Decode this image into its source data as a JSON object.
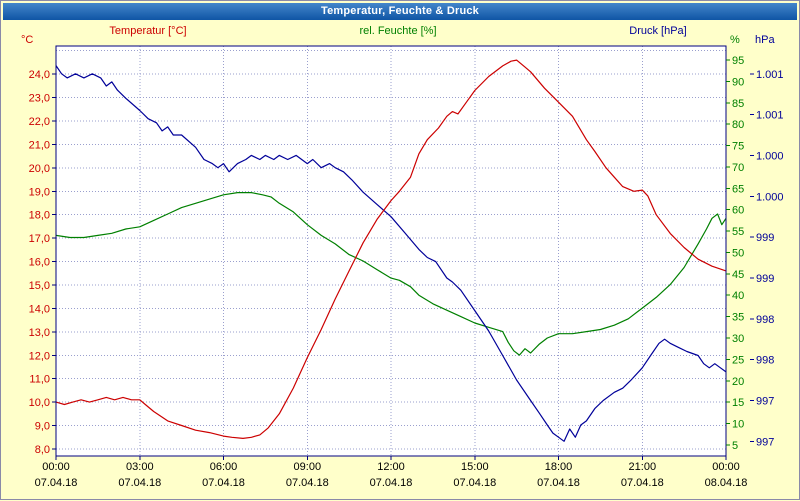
{
  "window": {
    "title": "Temperatur, Feuchte & Druck"
  },
  "header": {
    "temp_label": "Temperatur [°C]",
    "hum_label": "rel. Feuchte [%]",
    "press_label": "Druck [hPa]",
    "temp_unit": "°C",
    "hum_unit": "%",
    "press_unit": "hPa"
  },
  "colors": {
    "temp": "#cc0000",
    "hum": "#008000",
    "press": "#000099",
    "grid": "#9a9fce",
    "border": "#000080",
    "plot_bg": "#ffffff",
    "window_bg": "#ffffca",
    "titlebar": "#0f55a5",
    "time_text": "#000000"
  },
  "chart_data": {
    "type": "line",
    "title": "Temperatur, Feuchte & Druck",
    "grid": "dotted",
    "legend_position": "top",
    "x_axis": {
      "min": 0,
      "max": 24,
      "ticks": [
        {
          "h": 0,
          "time": "00:00",
          "date": "07.04.18"
        },
        {
          "h": 3,
          "time": "03:00",
          "date": "07.04.18"
        },
        {
          "h": 6,
          "time": "06:00",
          "date": "07.04.18"
        },
        {
          "h": 9,
          "time": "09:00",
          "date": "07.04.18"
        },
        {
          "h": 12,
          "time": "12:00",
          "date": "07.04.18"
        },
        {
          "h": 15,
          "time": "15:00",
          "date": "07.04.18"
        },
        {
          "h": 18,
          "time": "18:00",
          "date": "07.04.18"
        },
        {
          "h": 21,
          "time": "21:00",
          "date": "07.04.18"
        },
        {
          "h": 24,
          "time": "00:00",
          "date": "08.04.18"
        }
      ]
    },
    "y_axes": {
      "temperature": {
        "label": "Temperatur [°C]",
        "unit": "°C",
        "color": "#cc0000",
        "range": [
          7.7,
          25.2
        ],
        "grid_extra": [
          25
        ],
        "ticks": [
          {
            "v": 8,
            "label": "8,0"
          },
          {
            "v": 9,
            "label": "9,0"
          },
          {
            "v": 10,
            "label": "10,0"
          },
          {
            "v": 11,
            "label": "11,0"
          },
          {
            "v": 12,
            "label": "12,0"
          },
          {
            "v": 13,
            "label": "13,0"
          },
          {
            "v": 14,
            "label": "14,0"
          },
          {
            "v": 15,
            "label": "15,0"
          },
          {
            "v": 16,
            "label": "16,0"
          },
          {
            "v": 17,
            "label": "17,0"
          },
          {
            "v": 18,
            "label": "18,0"
          },
          {
            "v": 19,
            "label": "19,0"
          },
          {
            "v": 20,
            "label": "20,0"
          },
          {
            "v": 21,
            "label": "21,0"
          },
          {
            "v": 22,
            "label": "22,0"
          },
          {
            "v": 23,
            "label": "23,0"
          },
          {
            "v": 24,
            "label": "24,0"
          }
        ]
      },
      "humidity": {
        "label": "rel. Feuchte [%]",
        "unit": "%",
        "color": "#008000",
        "range": [
          2.4,
          98.3
        ],
        "ticks": [
          {
            "v": 5,
            "label": "5"
          },
          {
            "v": 10,
            "label": "10"
          },
          {
            "v": 15,
            "label": "15"
          },
          {
            "v": 20,
            "label": "20"
          },
          {
            "v": 25,
            "label": "25"
          },
          {
            "v": 30,
            "label": "30"
          },
          {
            "v": 35,
            "label": "35"
          },
          {
            "v": 40,
            "label": "40"
          },
          {
            "v": 45,
            "label": "45"
          },
          {
            "v": 50,
            "label": "50"
          },
          {
            "v": 55,
            "label": "55"
          },
          {
            "v": 60,
            "label": "60"
          },
          {
            "v": 65,
            "label": "65"
          },
          {
            "v": 70,
            "label": "70"
          },
          {
            "v": 75,
            "label": "75"
          },
          {
            "v": 80,
            "label": "80"
          },
          {
            "v": 85,
            "label": "85"
          },
          {
            "v": 90,
            "label": "90"
          },
          {
            "v": 95,
            "label": "95"
          }
        ]
      },
      "pressure": {
        "label": "Druck [hPa]",
        "unit": "hPa",
        "color": "#000099",
        "range": [
          996.32,
          1001.34
        ],
        "ticks": [
          {
            "v": 996.5,
            "label": "997"
          },
          {
            "v": 997,
            "label": "997"
          },
          {
            "v": 997.5,
            "label": "998"
          },
          {
            "v": 998,
            "label": "998"
          },
          {
            "v": 998.5,
            "label": "999"
          },
          {
            "v": 999,
            "label": "999"
          },
          {
            "v": 999.5,
            "label": "1.000"
          },
          {
            "v": 1000,
            "label": "1.000"
          },
          {
            "v": 1000.5,
            "label": "1.001"
          },
          {
            "v": 1001,
            "label": "1.001"
          }
        ]
      }
    },
    "series": [
      {
        "id": "humidity",
        "name": "rel. Feuchte",
        "axis": "humidity",
        "color": "#008000",
        "points": [
          [
            0,
            54
          ],
          [
            0.5,
            53.5
          ],
          [
            1,
            53.5
          ],
          [
            1.5,
            54
          ],
          [
            2,
            54.5
          ],
          [
            2.5,
            55.5
          ],
          [
            3,
            56
          ],
          [
            3.5,
            57.5
          ],
          [
            4,
            59
          ],
          [
            4.5,
            60.5
          ],
          [
            5,
            61.5
          ],
          [
            5.5,
            62.5
          ],
          [
            6,
            63.5
          ],
          [
            6.5,
            64
          ],
          [
            7,
            64
          ],
          [
            7.4,
            63.5
          ],
          [
            7.7,
            63
          ],
          [
            8,
            61.5
          ],
          [
            8.5,
            59.5
          ],
          [
            9,
            56.5
          ],
          [
            9.5,
            54
          ],
          [
            10,
            52
          ],
          [
            10.5,
            49.5
          ],
          [
            11,
            48
          ],
          [
            11.5,
            46
          ],
          [
            12,
            44
          ],
          [
            12.3,
            43.5
          ],
          [
            12.7,
            42
          ],
          [
            13,
            40
          ],
          [
            13.5,
            38
          ],
          [
            14,
            36.5
          ],
          [
            14.5,
            35
          ],
          [
            15,
            33.5
          ],
          [
            15.5,
            32.5
          ],
          [
            16,
            31.5
          ],
          [
            16.2,
            29
          ],
          [
            16.4,
            27
          ],
          [
            16.6,
            26
          ],
          [
            16.8,
            27.5
          ],
          [
            17,
            26.5
          ],
          [
            17.3,
            28.5
          ],
          [
            17.6,
            30
          ],
          [
            18,
            31
          ],
          [
            18.5,
            31
          ],
          [
            19,
            31.5
          ],
          [
            19.5,
            32
          ],
          [
            20,
            33
          ],
          [
            20.5,
            34.5
          ],
          [
            21,
            37
          ],
          [
            21.5,
            39.5
          ],
          [
            22,
            42.5
          ],
          [
            22.5,
            46.5
          ],
          [
            23,
            52
          ],
          [
            23.3,
            55.5
          ],
          [
            23.5,
            58
          ],
          [
            23.7,
            59
          ],
          [
            23.85,
            56.5
          ],
          [
            24,
            58
          ]
        ]
      },
      {
        "id": "pressure",
        "name": "Druck",
        "axis": "pressure",
        "color": "#000099",
        "points": [
          [
            0,
            1001.1
          ],
          [
            0.2,
            1001.0
          ],
          [
            0.4,
            1000.95
          ],
          [
            0.7,
            1001.0
          ],
          [
            1,
            1000.95
          ],
          [
            1.3,
            1001.0
          ],
          [
            1.6,
            1000.95
          ],
          [
            1.8,
            1000.85
          ],
          [
            2,
            1000.9
          ],
          [
            2.2,
            1000.8
          ],
          [
            2.5,
            1000.7
          ],
          [
            3,
            1000.55
          ],
          [
            3.3,
            1000.45
          ],
          [
            3.6,
            1000.4
          ],
          [
            3.8,
            1000.3
          ],
          [
            4,
            1000.35
          ],
          [
            4.2,
            1000.25
          ],
          [
            4.5,
            1000.25
          ],
          [
            5,
            1000.1
          ],
          [
            5.3,
            999.95
          ],
          [
            5.6,
            999.9
          ],
          [
            5.8,
            999.85
          ],
          [
            6,
            999.9
          ],
          [
            6.2,
            999.8
          ],
          [
            6.5,
            999.9
          ],
          [
            6.8,
            999.95
          ],
          [
            7,
            1000.0
          ],
          [
            7.3,
            999.95
          ],
          [
            7.5,
            1000.0
          ],
          [
            7.8,
            999.95
          ],
          [
            8,
            1000.0
          ],
          [
            8.3,
            999.95
          ],
          [
            8.6,
            1000.0
          ],
          [
            9,
            999.9
          ],
          [
            9.2,
            999.95
          ],
          [
            9.5,
            999.85
          ],
          [
            9.8,
            999.9
          ],
          [
            10,
            999.85
          ],
          [
            10.3,
            999.8
          ],
          [
            10.6,
            999.7
          ],
          [
            11,
            999.55
          ],
          [
            11.5,
            999.4
          ],
          [
            12,
            999.25
          ],
          [
            12.5,
            999.05
          ],
          [
            13,
            998.85
          ],
          [
            13.3,
            998.75
          ],
          [
            13.6,
            998.7
          ],
          [
            14,
            998.5
          ],
          [
            14.2,
            998.45
          ],
          [
            14.5,
            998.35
          ],
          [
            15,
            998.1
          ],
          [
            15.5,
            997.85
          ],
          [
            16,
            997.55
          ],
          [
            16.5,
            997.25
          ],
          [
            17,
            997.0
          ],
          [
            17.3,
            996.85
          ],
          [
            17.6,
            996.7
          ],
          [
            17.8,
            996.6
          ],
          [
            18,
            996.55
          ],
          [
            18.2,
            996.5
          ],
          [
            18.4,
            996.65
          ],
          [
            18.6,
            996.55
          ],
          [
            18.8,
            996.7
          ],
          [
            19,
            996.75
          ],
          [
            19.3,
            996.9
          ],
          [
            19.6,
            997.0
          ],
          [
            20,
            997.1
          ],
          [
            20.3,
            997.15
          ],
          [
            20.6,
            997.25
          ],
          [
            21,
            997.4
          ],
          [
            21.3,
            997.55
          ],
          [
            21.6,
            997.7
          ],
          [
            21.8,
            997.75
          ],
          [
            22,
            997.7
          ],
          [
            22.3,
            997.65
          ],
          [
            22.6,
            997.6
          ],
          [
            23,
            997.55
          ],
          [
            23.2,
            997.45
          ],
          [
            23.4,
            997.4
          ],
          [
            23.6,
            997.45
          ],
          [
            23.8,
            997.4
          ],
          [
            24,
            997.35
          ]
        ]
      },
      {
        "id": "temperature",
        "name": "Temperatur",
        "axis": "temperature",
        "color": "#cc0000",
        "points": [
          [
            0,
            10
          ],
          [
            0.3,
            9.9
          ],
          [
            0.6,
            10
          ],
          [
            0.9,
            10.1
          ],
          [
            1.2,
            10
          ],
          [
            1.5,
            10.1
          ],
          [
            1.8,
            10.2
          ],
          [
            2.1,
            10.1
          ],
          [
            2.4,
            10.2
          ],
          [
            2.7,
            10.1
          ],
          [
            3,
            10.1
          ],
          [
            3.2,
            9.9
          ],
          [
            3.5,
            9.6
          ],
          [
            4,
            9.2
          ],
          [
            4.5,
            9
          ],
          [
            5,
            8.8
          ],
          [
            5.5,
            8.7
          ],
          [
            6,
            8.55
          ],
          [
            6.3,
            8.5
          ],
          [
            6.7,
            8.45
          ],
          [
            7,
            8.5
          ],
          [
            7.3,
            8.6
          ],
          [
            7.6,
            8.9
          ],
          [
            8,
            9.5
          ],
          [
            8.5,
            10.6
          ],
          [
            9,
            11.9
          ],
          [
            9.5,
            13.1
          ],
          [
            10,
            14.4
          ],
          [
            10.5,
            15.6
          ],
          [
            11,
            16.8
          ],
          [
            11.5,
            17.8
          ],
          [
            12,
            18.6
          ],
          [
            12.3,
            19
          ],
          [
            12.7,
            19.6
          ],
          [
            13,
            20.6
          ],
          [
            13.3,
            21.2
          ],
          [
            13.7,
            21.7
          ],
          [
            14,
            22.2
          ],
          [
            14.2,
            22.4
          ],
          [
            14.4,
            22.3
          ],
          [
            14.7,
            22.8
          ],
          [
            15,
            23.3
          ],
          [
            15.5,
            23.9
          ],
          [
            16,
            24.35
          ],
          [
            16.3,
            24.55
          ],
          [
            16.5,
            24.6
          ],
          [
            16.8,
            24.3
          ],
          [
            17,
            24.1
          ],
          [
            17.5,
            23.4
          ],
          [
            18,
            22.8
          ],
          [
            18.5,
            22.2
          ],
          [
            19,
            21.2
          ],
          [
            19.3,
            20.7
          ],
          [
            19.7,
            20
          ],
          [
            20,
            19.6
          ],
          [
            20.3,
            19.2
          ],
          [
            20.7,
            19
          ],
          [
            21,
            19.05
          ],
          [
            21.2,
            18.8
          ],
          [
            21.5,
            18
          ],
          [
            22,
            17.2
          ],
          [
            22.5,
            16.6
          ],
          [
            23,
            16.1
          ],
          [
            23.5,
            15.8
          ],
          [
            24,
            15.6
          ]
        ]
      }
    ]
  }
}
